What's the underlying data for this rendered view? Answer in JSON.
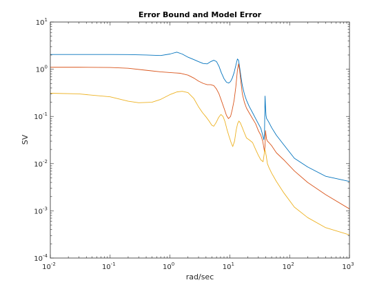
{
  "chart_data": {
    "type": "line",
    "title": "Error Bound and Model Error",
    "xlabel": "rad/sec",
    "ylabel": "SV",
    "x_scale": "log",
    "y_scale": "log",
    "xlim": [
      0.01,
      1000
    ],
    "ylim": [
      0.0001,
      10
    ],
    "x_ticks": [
      {
        "base": "10",
        "exp": "-2",
        "value": 0.01
      },
      {
        "base": "10",
        "exp": "-1",
        "value": 0.1
      },
      {
        "base": "10",
        "exp": "0",
        "value": 1
      },
      {
        "base": "10",
        "exp": "1",
        "value": 10
      },
      {
        "base": "10",
        "exp": "2",
        "value": 100
      },
      {
        "base": "10",
        "exp": "3",
        "value": 1000
      }
    ],
    "y_ticks": [
      {
        "base": "10",
        "exp": "-4",
        "value": 0.0001
      },
      {
        "base": "10",
        "exp": "-3",
        "value": 0.001
      },
      {
        "base": "10",
        "exp": "-2",
        "value": 0.01
      },
      {
        "base": "10",
        "exp": "-1",
        "value": 0.1
      },
      {
        "base": "10",
        "exp": "0",
        "value": 1
      },
      {
        "base": "10",
        "exp": "1",
        "value": 10
      }
    ],
    "grid": false,
    "box": true,
    "series": [
      {
        "color": "#0072BD",
        "x": [
          0.01,
          0.03,
          0.1,
          0.2,
          0.4,
          0.7,
          1.0,
          1.3,
          1.6,
          2.0,
          2.5,
          3.0,
          3.6,
          4.2,
          4.8,
          5.4,
          6.0,
          6.6,
          7.2,
          8.0,
          8.8,
          9.6,
          10.3,
          11.0,
          11.8,
          12.6,
          13.4,
          14.0,
          14.6,
          15.3,
          16.2,
          17.5,
          19.0,
          21.0,
          24.0,
          27.0,
          30.0,
          33.0,
          35.5,
          37.0,
          38.0,
          38.8,
          39.5,
          40.3,
          41.2,
          42.5,
          45.0,
          50.0,
          60.0,
          80.0,
          120.0,
          200.0,
          400.0,
          1000.0
        ],
        "y": [
          2.05,
          2.05,
          2.05,
          2.04,
          2.0,
          1.95,
          2.1,
          2.3,
          2.1,
          1.8,
          1.6,
          1.45,
          1.32,
          1.3,
          1.45,
          1.55,
          1.45,
          1.15,
          0.85,
          0.63,
          0.53,
          0.51,
          0.55,
          0.65,
          0.85,
          1.2,
          1.65,
          1.55,
          1.1,
          0.72,
          0.45,
          0.3,
          0.22,
          0.165,
          0.12,
          0.09,
          0.07,
          0.056,
          0.04,
          0.032,
          0.042,
          0.27,
          0.16,
          0.105,
          0.09,
          0.085,
          0.075,
          0.058,
          0.04,
          0.025,
          0.013,
          0.0085,
          0.0054,
          0.0042
        ]
      },
      {
        "color": "#D95319",
        "x": [
          0.01,
          0.03,
          0.1,
          0.2,
          0.4,
          0.7,
          1.0,
          1.5,
          2.0,
          2.5,
          3.0,
          3.6,
          4.2,
          4.8,
          5.4,
          6.0,
          6.6,
          7.2,
          8.0,
          8.8,
          9.5,
          10.3,
          11.0,
          11.8,
          12.6,
          13.4,
          14.0,
          14.6,
          15.3,
          16.2,
          17.5,
          19.0,
          21.0,
          24.0,
          27.0,
          30.0,
          33.0,
          35.5,
          37.0,
          38.0,
          38.8,
          39.5,
          40.3,
          41.2,
          42.5,
          45.0,
          50.0,
          60.0,
          80.0,
          120.0,
          200.0,
          400.0,
          1000.0
        ],
        "y": [
          1.1,
          1.1,
          1.09,
          1.05,
          0.95,
          0.88,
          0.85,
          0.82,
          0.75,
          0.65,
          0.56,
          0.5,
          0.47,
          0.47,
          0.45,
          0.38,
          0.3,
          0.22,
          0.15,
          0.105,
          0.09,
          0.1,
          0.14,
          0.22,
          0.42,
          0.95,
          1.3,
          0.95,
          0.55,
          0.3,
          0.2,
          0.15,
          0.12,
          0.09,
          0.07,
          0.05,
          0.04,
          0.03,
          0.022,
          0.018,
          0.024,
          0.05,
          0.04,
          0.033,
          0.03,
          0.028,
          0.024,
          0.017,
          0.012,
          0.007,
          0.004,
          0.0022,
          0.0011
        ]
      },
      {
        "color": "#EDB120",
        "x": [
          0.01,
          0.03,
          0.1,
          0.2,
          0.3,
          0.5,
          0.7,
          1.0,
          1.3,
          1.6,
          2.0,
          2.5,
          3.0,
          3.5,
          4.0,
          4.5,
          5.0,
          5.4,
          5.9,
          6.5,
          7.1,
          7.7,
          8.3,
          9.0,
          9.7,
          10.5,
          11.2,
          12.0,
          12.8,
          13.5,
          14.2,
          15.0,
          16.0,
          17.5,
          19.0,
          21.0,
          24.0,
          27.0,
          30.0,
          33.0,
          36.0,
          38.5,
          40.5,
          42.5,
          45.0,
          50.0,
          60.0,
          80.0,
          120.0,
          200.0,
          400.0,
          1000.0
        ],
        "y": [
          0.31,
          0.3,
          0.26,
          0.21,
          0.195,
          0.2,
          0.23,
          0.29,
          0.33,
          0.34,
          0.32,
          0.24,
          0.16,
          0.12,
          0.098,
          0.08,
          0.065,
          0.062,
          0.074,
          0.095,
          0.11,
          0.1,
          0.078,
          0.052,
          0.038,
          0.028,
          0.023,
          0.03,
          0.052,
          0.07,
          0.08,
          0.073,
          0.06,
          0.045,
          0.035,
          0.032,
          0.028,
          0.02,
          0.015,
          0.012,
          0.011,
          0.02,
          0.015,
          0.01,
          0.0083,
          0.0063,
          0.0042,
          0.0024,
          0.0012,
          0.00072,
          0.00044,
          0.00031
        ]
      }
    ]
  }
}
